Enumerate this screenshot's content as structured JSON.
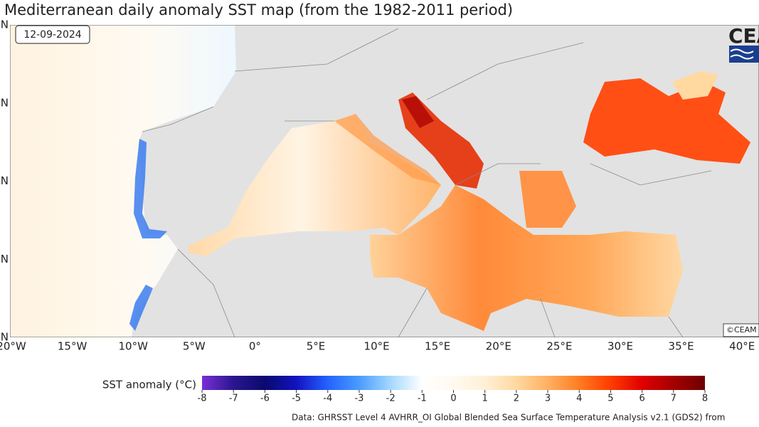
{
  "title": "Mediterranean daily anomaly SST map (from the 1982-2011 period)",
  "date": "12-09-2024",
  "logo": "CEA",
  "copyright": "©CEAM",
  "map": {
    "lon_ticks": [
      "20°W",
      "15°W",
      "10°W",
      "5°W",
      "0°",
      "5°E",
      "10°E",
      "15°E",
      "20°E",
      "25°E",
      "30°E",
      "35°E",
      "40°E"
    ],
    "lat_ticks": [
      "N",
      "N",
      "N",
      "N",
      "N"
    ]
  },
  "colorbar": {
    "label": "SST anomaly (°C)",
    "ticks": [
      -8,
      -7,
      -6,
      -5,
      -4,
      -3,
      -2,
      -1,
      0,
      1,
      2,
      3,
      4,
      5,
      6,
      7,
      8
    ],
    "colors": [
      "#7a2fd6",
      "#2a1690",
      "#0a0a6e",
      "#1212c0",
      "#2462ff",
      "#4a9cff",
      "#a4d8ff",
      "#ffffff",
      "#fffaf0",
      "#fff0d6",
      "#ffd8a0",
      "#ffb062",
      "#ff7c22",
      "#ff3c00",
      "#e00000",
      "#a40000",
      "#6e0000"
    ]
  },
  "source": "Data: GHRSST Level 4 AVHRR_OI Global Blended Sea Surface Temperature Analysis v2.1 (GDS2) from"
}
